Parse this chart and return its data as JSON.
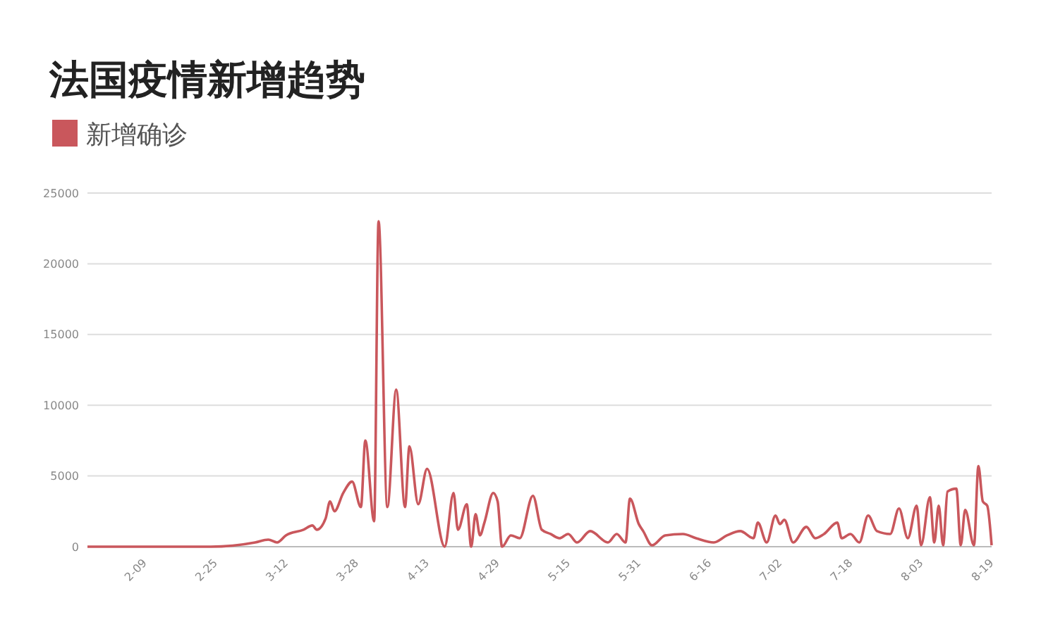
{
  "chart_data": {
    "type": "line",
    "title": "法国疫情新增趋势",
    "legend": "top left",
    "grid": "y",
    "line_style": "solid",
    "marker": "none",
    "xlim": [
      "--01-28",
      "--08-20"
    ],
    "ylim": [
      0,
      25000
    ],
    "yticks": [
      0,
      5000,
      10000,
      15000,
      20000,
      25000
    ],
    "xticks": [
      {
        "value": "--02-09",
        "label": "2-09"
      },
      {
        "value": "--02-25",
        "label": "2-25"
      },
      {
        "value": "--03-12",
        "label": "3-12"
      },
      {
        "value": "--03-28",
        "label": "3-28"
      },
      {
        "value": "--04-13",
        "label": "4-13"
      },
      {
        "value": "--04-29",
        "label": "4-29"
      },
      {
        "value": "--05-15",
        "label": "5-15"
      },
      {
        "value": "--05-31",
        "label": "5-31"
      },
      {
        "value": "--06-16",
        "label": "6-16"
      },
      {
        "value": "--07-02",
        "label": "7-02"
      },
      {
        "value": "--07-18",
        "label": "7-18"
      },
      {
        "value": "--08-03",
        "label": "8-03"
      },
      {
        "value": "--08-19",
        "label": "8-19"
      }
    ],
    "series": [
      {
        "name": "新增确诊",
        "color": "#c9575c",
        "x": [
          "--01-28",
          "--02-09",
          "--02-25",
          "--03-06",
          "--03-09",
          "--03-11",
          "--03-13",
          "--03-17",
          "--03-19",
          "--03-20",
          "--03-22",
          "--03-23",
          "--03-24",
          "--03-26",
          "--03-28",
          "--03-30",
          "--03-31",
          "--04-02",
          "--04-03",
          "--04-05",
          "--04-07",
          "--04-09",
          "--04-10",
          "--04-12",
          "--04-14",
          "--04-18",
          "--04-20",
          "--04-21",
          "--04-23",
          "--04-24",
          "--04-25",
          "--04-26",
          "--04-27",
          "--04-29",
          "--04-30",
          "--05-01",
          "--05-03",
          "--05-05",
          "--05-08",
          "--05-10",
          "--05-12",
          "--05-14",
          "--05-16",
          "--05-18",
          "--05-21",
          "--05-25",
          "--05-27",
          "--05-29",
          "--05-30",
          "--06-01",
          "--06-02",
          "--06-04",
          "--06-07",
          "--06-11",
          "--06-14",
          "--06-18",
          "--06-21",
          "--06-24",
          "--06-27",
          "--06-28",
          "--06-30",
          "--07-02",
          "--07-03",
          "--07-04",
          "--07-06",
          "--07-09",
          "--07-11",
          "--07-13",
          "--07-16",
          "--07-17",
          "--07-19",
          "--07-21",
          "--07-23",
          "--07-25",
          "--07-28",
          "--07-30",
          "--08-01",
          "--08-03",
          "--08-04",
          "--08-06",
          "--08-07",
          "--08-08",
          "--08-09",
          "--08-10",
          "--08-12",
          "--08-13",
          "--08-14",
          "--08-16",
          "--08-17",
          "--08-18",
          "--08-19",
          "--08-20"
        ],
        "values": [
          0,
          0,
          0,
          300,
          500,
          300,
          800,
          1200,
          1500,
          1200,
          2000,
          3200,
          2500,
          3800,
          4600,
          2800,
          7500,
          1800,
          23000,
          2800,
          11100,
          2800,
          7100,
          3000,
          5500,
          0,
          3800,
          1200,
          3000,
          0,
          2300,
          800,
          1700,
          3800,
          3200,
          0,
          800,
          600,
          3600,
          1200,
          900,
          600,
          900,
          300,
          1100,
          300,
          900,
          300,
          3400,
          1600,
          1100,
          100,
          800,
          900,
          600,
          300,
          800,
          1100,
          600,
          1700,
          300,
          2200,
          1600,
          1900,
          300,
          1400,
          600,
          900,
          1700,
          600,
          900,
          300,
          2200,
          1100,
          900,
          2700,
          600,
          2900,
          100,
          3500,
          300,
          2900,
          100,
          3900,
          4100,
          100,
          2600,
          100,
          5700,
          3200,
          2900,
          100
        ]
      }
    ]
  }
}
